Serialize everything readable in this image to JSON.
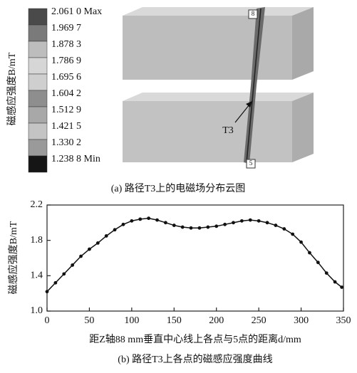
{
  "figure_a": {
    "legend_title": "磁感应强度B/mT",
    "legend_levels": [
      "2.061 0 Max",
      "1.969 7",
      "1.878 3",
      "1.786 9",
      "1.695 6",
      "1.604 2",
      "1.512 9",
      "1.421 5",
      "1.330 2",
      "1.238 8 Min"
    ],
    "legend_colors": [
      "#4a4a4a",
      "#7a7a7a",
      "#bdbdbd",
      "#d6d6d6",
      "#cfcfcf",
      "#8e8e8e",
      "#a8a8a8",
      "#c4c4c4",
      "#9a9a9a",
      "#151515"
    ],
    "path_label": "T3",
    "point_labels": [
      "8",
      "5"
    ],
    "caption": "(a) 路径T3上的电磁场分布云图"
  },
  "chart_data": {
    "type": "line",
    "ylabel": "磁感应强度B/mT",
    "xlabel": "距Z轴88 mm垂直中心线上各点与5点的距离d/mm",
    "caption": "(b) 路径T3上各点的磁感应强度曲线",
    "x": [
      0,
      10,
      20,
      30,
      40,
      50,
      60,
      70,
      80,
      90,
      100,
      110,
      120,
      130,
      140,
      150,
      160,
      170,
      180,
      190,
      200,
      210,
      220,
      230,
      240,
      250,
      260,
      270,
      280,
      290,
      300,
      310,
      320,
      330,
      340,
      348
    ],
    "values": [
      1.22,
      1.32,
      1.42,
      1.52,
      1.62,
      1.7,
      1.77,
      1.85,
      1.92,
      1.98,
      2.02,
      2.04,
      2.05,
      2.03,
      2.0,
      1.97,
      1.95,
      1.94,
      1.94,
      1.95,
      1.96,
      1.98,
      2.0,
      2.02,
      2.03,
      2.02,
      2.0,
      1.97,
      1.93,
      1.87,
      1.78,
      1.66,
      1.55,
      1.43,
      1.33,
      1.27
    ],
    "color": "#111111",
    "xlim": [
      0,
      350
    ],
    "xticks": [
      0,
      50,
      100,
      150,
      200,
      250,
      300,
      350
    ],
    "ylim": [
      1.0,
      2.2
    ],
    "yticks": [
      {
        "value": 1.0,
        "label": "1.0"
      },
      1.4,
      1.8,
      2.2
    ]
  }
}
